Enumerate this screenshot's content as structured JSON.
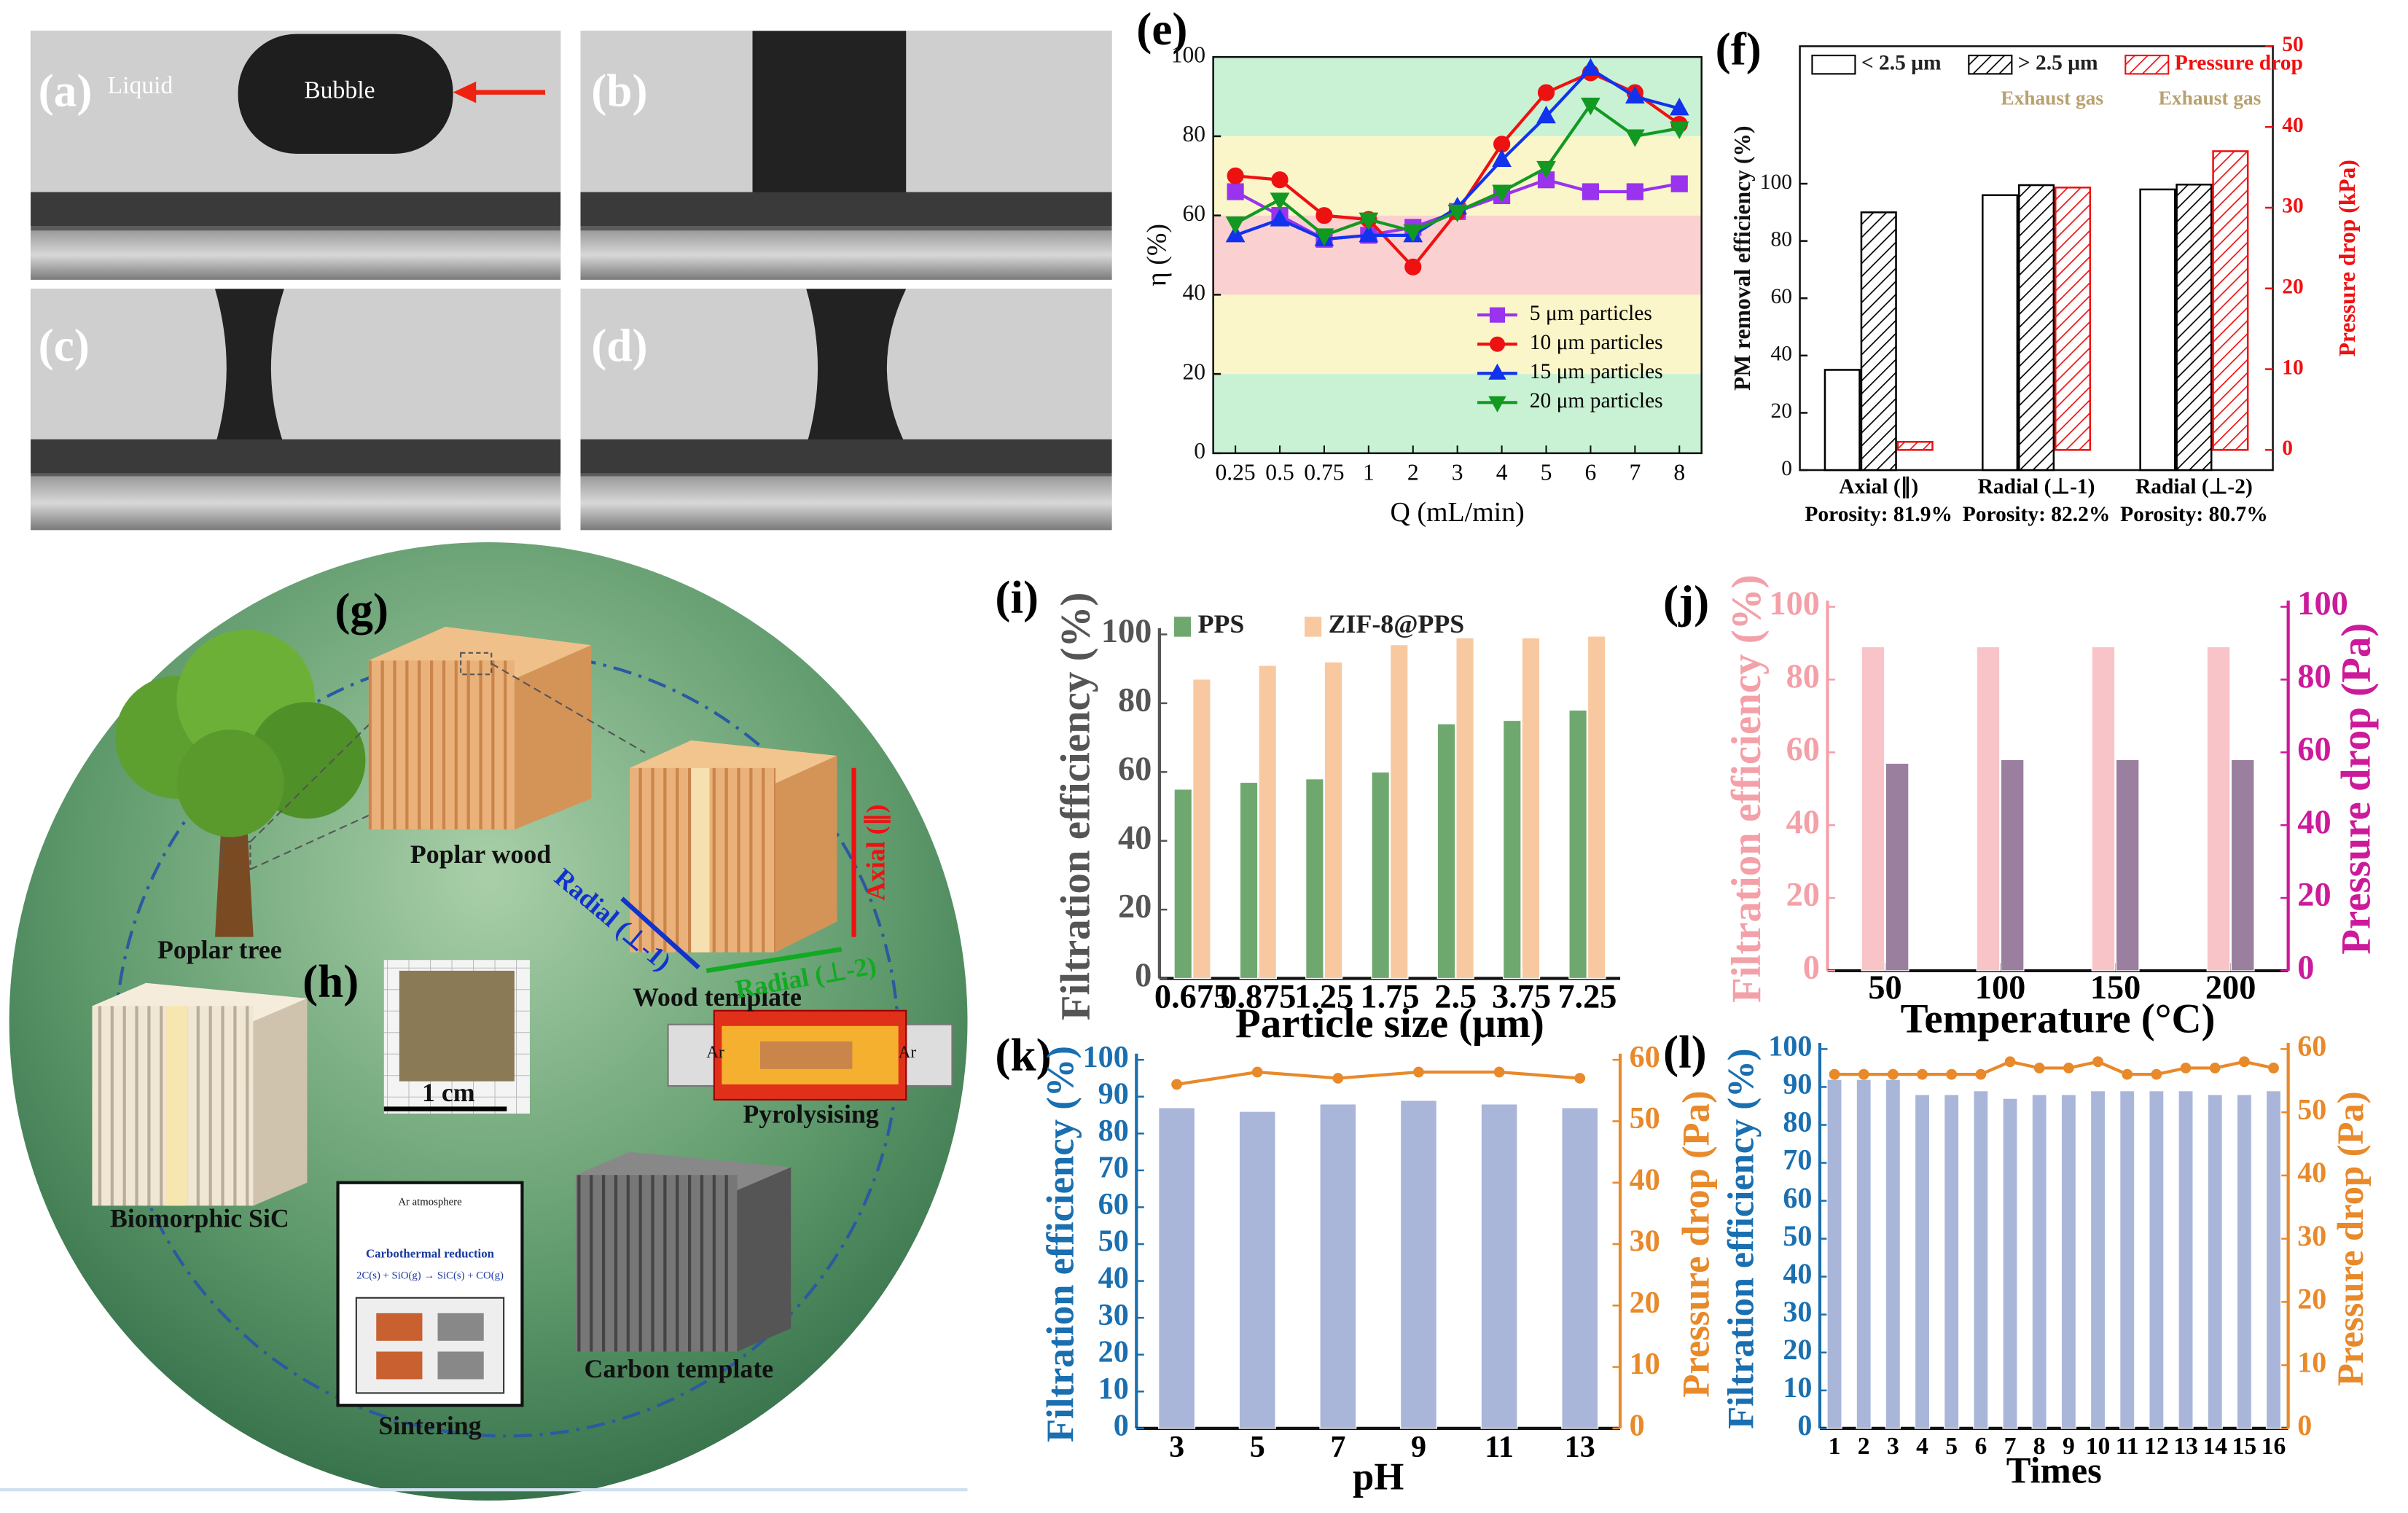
{
  "photos": [
    {
      "label": "(a)",
      "liquid": "Liquid",
      "bubble": "Bubble"
    },
    {
      "label": "(b)"
    },
    {
      "label": "(c)"
    },
    {
      "label": "(d)"
    }
  ],
  "diagram": {
    "panel_label": "(g)",
    "inset_label": "(h)",
    "poplar_wood": "Poplar wood",
    "poplar_tree": "Poplar tree",
    "wood_template": "Wood template",
    "axial": "Axial (∥)",
    "radial_1": "Radial (⊥-1)",
    "radial_2": "Radial (⊥-2)",
    "scale": "1 cm",
    "gas_in": "Ar",
    "gas_out": "Ar",
    "pyrolysis": "Pyrolysising",
    "sic": "Biomorphic SiC",
    "carbon": "Carbon template",
    "sintering": "Sintering",
    "atmosphere": "Ar atmosphere",
    "reaction_title": "Carbothermal reduction",
    "reaction": "2C(s) + SiO(g) → SiC(s) + CO(g)"
  },
  "chart_data": [
    {
      "type": "line",
      "panel_label": "(e)",
      "xlabel": "Q (mL/min)",
      "ylabel": "η (%)",
      "categories": [
        "0.25",
        "0.5",
        "0.75",
        "1",
        "2",
        "3",
        "4",
        "5",
        "6",
        "7",
        "8"
      ],
      "ylim": [
        0,
        100
      ],
      "yticks": [
        0,
        20,
        40,
        60,
        80,
        100
      ],
      "frame": true,
      "legend": "lower right",
      "bands": [
        {
          "from": 0,
          "to": 20,
          "color": "#c9f2d4"
        },
        {
          "from": 20,
          "to": 40,
          "color": "#fbf6c9"
        },
        {
          "from": 40,
          "to": 60,
          "color": "#fbd0d0"
        },
        {
          "from": 60,
          "to": 80,
          "color": "#fbf6c9"
        },
        {
          "from": 80,
          "to": 100,
          "color": "#c9f2d4"
        }
      ],
      "series": [
        {
          "name": "5 μm particles",
          "color": "#9933ee",
          "marker": "square",
          "kind": "line",
          "values": [
            66,
            60,
            54,
            55,
            57,
            61,
            65,
            69,
            66,
            66,
            68
          ]
        },
        {
          "name": "10 μm particles",
          "color": "#ee1111",
          "marker": "circle",
          "kind": "line",
          "values": [
            70,
            69,
            60,
            59,
            47,
            61,
            78,
            91,
            96,
            91,
            83
          ]
        },
        {
          "name": "15 μm particles",
          "color": "#1133ee",
          "marker": "triangle",
          "kind": "line",
          "values": [
            55,
            59,
            54,
            55,
            55,
            62,
            74,
            85,
            97,
            90,
            87
          ]
        },
        {
          "name": "20 μm particles",
          "color": "#119922",
          "marker": "down-triangle",
          "kind": "line",
          "values": [
            58,
            64,
            55,
            59,
            56,
            61,
            66,
            72,
            88,
            80,
            82
          ]
        }
      ]
    },
    {
      "type": "bar",
      "panel_label": "(f)",
      "ylabel": "PM removal efficiency (%)",
      "y2label": "Pressure drop (kPa)",
      "y2_color": "#ee1111",
      "categories": [
        "Axial (∥)",
        "Radial (⊥-1)",
        "Radial (⊥-2)"
      ],
      "category_notes": [
        "Porosity: 81.9%",
        "Porosity: 82.2%",
        "Porosity: 80.7%"
      ],
      "annotations": [
        "Exhaust gas",
        "Exhaust gas"
      ],
      "ylim": [
        0,
        148
      ],
      "yticks": [
        0,
        20,
        40,
        60,
        80,
        100
      ],
      "y2lim": [
        -2.5,
        50
      ],
      "y2ticks": [
        0,
        10,
        20,
        30,
        40,
        50
      ],
      "frame": true,
      "legend": "top",
      "series": [
        {
          "name": "< 2.5 μm",
          "color": "#000000",
          "style": "outline",
          "kind": "bar",
          "values": [
            35,
            96,
            98
          ]
        },
        {
          "name": "> 2.5 μm",
          "color": "#000000",
          "style": "hatch",
          "kind": "bar",
          "values": [
            90,
            99.5,
            99.7
          ]
        },
        {
          "name": "Pressure drop",
          "color": "#ee1111",
          "style": "hatch",
          "kind": "bar",
          "axis": "y2",
          "values": [
            1,
            32.5,
            37
          ]
        }
      ]
    },
    {
      "type": "bar",
      "panel_label": "(i)",
      "xlabel": "Particle size (μm)",
      "ylabel": "Filtration efficiency (%)",
      "y_color": "#555555",
      "categories": [
        "0.675",
        "0.875",
        "1.25",
        "1.75",
        "2.5",
        "3.75",
        "7.25"
      ],
      "ylim": [
        0,
        100
      ],
      "yticks": [
        0,
        20,
        40,
        60,
        80,
        100
      ],
      "frame": false,
      "legend": "top",
      "series": [
        {
          "name": "PPS",
          "color": "#6fa86f",
          "style": "solid",
          "kind": "bar",
          "values": [
            55,
            57,
            58,
            60,
            74,
            75,
            78
          ]
        },
        {
          "name": "ZIF-8@PPS",
          "color": "#f8c9a0",
          "style": "solid",
          "kind": "bar",
          "values": [
            87,
            91,
            92,
            97,
            99,
            99,
            99.5
          ]
        }
      ]
    },
    {
      "type": "bar",
      "panel_label": "(j)",
      "xlabel": "Temperature (°C)",
      "ylabel": "Filtration efficiency (%)",
      "y2label": "Pressure drop (Pa)",
      "y_color": "#f4a0a8",
      "y2_color": "#cc1a9a",
      "categories": [
        "50",
        "100",
        "150",
        "200"
      ],
      "ylim": [
        0,
        100
      ],
      "yticks": [
        0,
        20,
        40,
        60,
        80,
        100
      ],
      "y2lim": [
        0,
        100
      ],
      "y2ticks": [
        0,
        20,
        40,
        60,
        80,
        100
      ],
      "frame": false,
      "series": [
        {
          "name": "Filtration efficiency",
          "color": "#f8c4c8",
          "style": "solid",
          "kind": "bar",
          "values": [
            89,
            89,
            89,
            89
          ]
        },
        {
          "name": "Pressure drop",
          "color": "#9a7f9f",
          "style": "solid",
          "kind": "bar",
          "axis": "y2",
          "values": [
            57,
            58,
            58,
            58
          ]
        }
      ]
    },
    {
      "type": "combo",
      "panel_label": "(k)",
      "xlabel": "pH",
      "ylabel": "Filtration efficiency (%)",
      "y2label": "Pressure drop (Pa)",
      "y_color": "#1a6fb0",
      "y2_color": "#e8892a",
      "categories": [
        "3",
        "5",
        "7",
        "9",
        "11",
        "13"
      ],
      "ylim": [
        0,
        100
      ],
      "yticks": [
        0,
        10,
        20,
        30,
        40,
        50,
        60,
        70,
        80,
        90,
        100
      ],
      "y2lim": [
        0,
        60
      ],
      "y2ticks": [
        0,
        10,
        20,
        30,
        40,
        50,
        60
      ],
      "frame": false,
      "series": [
        {
          "name": "Filtration efficiency",
          "color": "#a9b6da",
          "style": "solid",
          "kind": "bar",
          "values": [
            87,
            86,
            88,
            89,
            88,
            87
          ]
        },
        {
          "name": "Pressure drop",
          "color": "#e8892a",
          "marker": "circle",
          "kind": "line",
          "axis": "y2",
          "values": [
            56,
            58,
            57,
            58,
            58,
            57
          ]
        }
      ]
    },
    {
      "type": "combo",
      "panel_label": "(l)",
      "xlabel": "Times",
      "ylabel": "Filtration efficiency (%)",
      "y2label": "Pressure drop (Pa)",
      "y_color": "#1a6fb0",
      "y2_color": "#e8892a",
      "categories": [
        "1",
        "2",
        "3",
        "4",
        "5",
        "6",
        "7",
        "8",
        "9",
        "10",
        "11",
        "12",
        "13",
        "14",
        "15",
        "16"
      ],
      "ylim": [
        0,
        100
      ],
      "yticks": [
        0,
        10,
        20,
        30,
        40,
        50,
        60,
        70,
        80,
        90,
        100
      ],
      "y2lim": [
        0,
        60
      ],
      "y2ticks": [
        0,
        10,
        20,
        30,
        40,
        50,
        60
      ],
      "frame": false,
      "series": [
        {
          "name": "Filtration efficiency",
          "color": "#a9b6da",
          "style": "solid",
          "kind": "bar",
          "values": [
            92,
            92,
            92,
            88,
            88,
            89,
            87,
            88,
            88,
            89,
            89,
            89,
            89,
            88,
            88,
            89
          ]
        },
        {
          "name": "Pressure drop",
          "color": "#e8892a",
          "marker": "circle",
          "kind": "line",
          "axis": "y2",
          "values": [
            56,
            56,
            56,
            56,
            56,
            56,
            58,
            57,
            57,
            58,
            56,
            56,
            57,
            57,
            58,
            57
          ]
        }
      ]
    }
  ]
}
